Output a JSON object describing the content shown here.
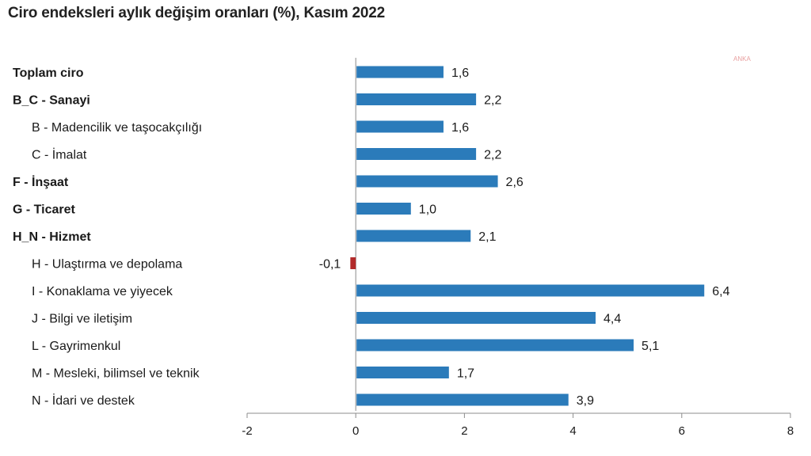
{
  "chart_data": {
    "type": "bar",
    "orientation": "horizontal",
    "title": "Ciro endeksleri aylık değişim oranları (%), Kasım 2022",
    "watermark": "ANKA",
    "categories": [
      "Toplam ciro",
      "B_C - Sanayi",
      "B - Madencilik ve taşocakçılığı",
      "C - İmalat",
      "F - İnşaat",
      "G - Ticaret",
      "H_N - Hizmet",
      "H - Ulaştırma ve depolama",
      "I - Konaklama ve yiyecek",
      "J - Bilgi ve iletişim",
      "L - Gayrimenkul",
      "M - Mesleki, bilimsel ve teknik",
      "N - İdari ve destek"
    ],
    "category_level": [
      0,
      0,
      1,
      1,
      0,
      0,
      0,
      1,
      1,
      1,
      1,
      1,
      1
    ],
    "values": [
      1.6,
      2.2,
      1.6,
      2.2,
      2.6,
      1.0,
      2.1,
      -0.1,
      6.4,
      4.4,
      5.1,
      1.7,
      3.9
    ],
    "value_labels": [
      "1,6",
      "2,2",
      "1,6",
      "2,2",
      "2,6",
      "1,0",
      "2,1",
      "-0,1",
      "6,4",
      "4,4",
      "5,1",
      "1,7",
      "3,9"
    ],
    "xlim": [
      -2,
      8
    ],
    "xticks": [
      -2,
      0,
      2,
      4,
      6,
      8
    ],
    "xtick_labels": [
      "-2",
      "0",
      "2",
      "4",
      "6",
      "8"
    ],
    "colors": {
      "positive": "#2b7bba",
      "negative": "#b22a2a",
      "axis": "#8c8c8c"
    },
    "grid": false,
    "legend": "none"
  }
}
